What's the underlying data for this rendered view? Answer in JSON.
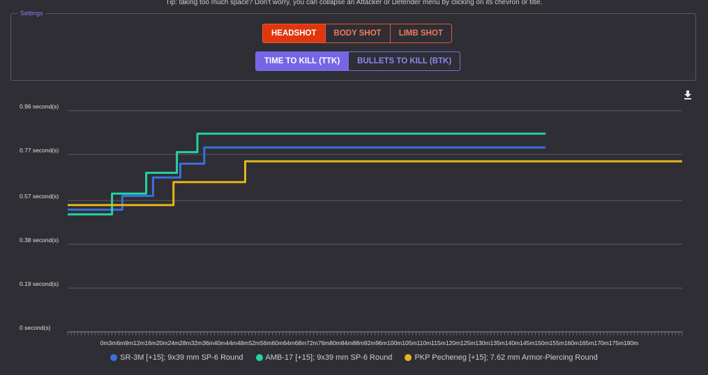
{
  "tip": "Tip: taking too much space? Don't worry, you can collapse an Attacker or Defender menu by clicking on its chevron or title.",
  "settings": {
    "legend": "Settings",
    "shot_buttons": [
      "HEADSHOT",
      "BODY SHOT",
      "LIMB SHOT"
    ],
    "shot_active": "HEADSHOT",
    "mode_buttons": [
      "TIME TO KILL (TTK)",
      "BULLETS TO KILL (BTK)"
    ],
    "mode_active": "TIME TO KILL (TTK)"
  },
  "toolbar": {
    "download_icon": "download-icon"
  },
  "colors": {
    "headshot_accent": "#e0360e",
    "mode_accent": "#7666e6",
    "series": [
      "#3b6fe0",
      "#22d3a6",
      "#e8b419"
    ]
  },
  "chart_data": {
    "type": "line",
    "step": true,
    "ylim": [
      0,
      0.96
    ],
    "xlim": [
      0,
      180
    ],
    "y_ticks": [
      {
        "value": 0,
        "label": "0 second(s)"
      },
      {
        "value": 0.19,
        "label": "0.19 second(s)"
      },
      {
        "value": 0.38,
        "label": "0.38 second(s)"
      },
      {
        "value": 0.57,
        "label": "0.57 second(s)"
      },
      {
        "value": 0.77,
        "label": "0.77 second(s)"
      },
      {
        "value": 0.96,
        "label": "0.96 second(s)"
      }
    ],
    "x_ticks": [
      "0m",
      "3m",
      "6m",
      "9m",
      "12m",
      "16m",
      "20m",
      "24m",
      "28m",
      "32m",
      "36m",
      "40m",
      "44m",
      "48m",
      "52m",
      "56m",
      "60m",
      "64m",
      "68m",
      "72m",
      "76m",
      "80m",
      "84m",
      "88m",
      "92m",
      "96m",
      "100m",
      "105m",
      "110m",
      "115m",
      "120m",
      "125m",
      "130m",
      "135m",
      "140m",
      "145m",
      "150m",
      "155m",
      "160m",
      "165m",
      "170m",
      "175m",
      "180m"
    ],
    "x_tick_values": [
      0,
      3,
      6,
      9,
      12,
      16,
      20,
      24,
      28,
      32,
      36,
      40,
      44,
      48,
      52,
      56,
      60,
      64,
      68,
      72,
      76,
      80,
      84,
      88,
      92,
      96,
      100,
      105,
      110,
      115,
      120,
      125,
      130,
      135,
      140,
      145,
      150,
      155,
      160,
      165,
      170,
      175,
      180
    ],
    "grid": true,
    "legend_position": "bottom",
    "series": [
      {
        "name": "SR-3M [+15]; 9x39 mm SP-6 Round",
        "color": "#3b6fe0",
        "points": [
          [
            0,
            0.53
          ],
          [
            16,
            0.53
          ],
          [
            16,
            0.59
          ],
          [
            25,
            0.59
          ],
          [
            25,
            0.67
          ],
          [
            33,
            0.67
          ],
          [
            33,
            0.73
          ],
          [
            40,
            0.73
          ],
          [
            40,
            0.8
          ],
          [
            140,
            0.8
          ]
        ]
      },
      {
        "name": "AMB-17 [+15]; 9x39 mm SP-6 Round",
        "color": "#22d3a6",
        "points": [
          [
            0,
            0.51
          ],
          [
            13,
            0.51
          ],
          [
            13,
            0.6
          ],
          [
            23,
            0.6
          ],
          [
            23,
            0.69
          ],
          [
            32,
            0.69
          ],
          [
            32,
            0.78
          ],
          [
            38,
            0.78
          ],
          [
            38,
            0.86
          ],
          [
            140,
            0.86
          ]
        ]
      },
      {
        "name": "PKP Pecheneg [+15]; 7.62 mm Armor-Piercing Round",
        "color": "#e8b419",
        "points": [
          [
            0,
            0.55
          ],
          [
            31,
            0.55
          ],
          [
            31,
            0.65
          ],
          [
            52,
            0.65
          ],
          [
            52,
            0.74
          ],
          [
            180,
            0.74
          ]
        ]
      }
    ]
  }
}
